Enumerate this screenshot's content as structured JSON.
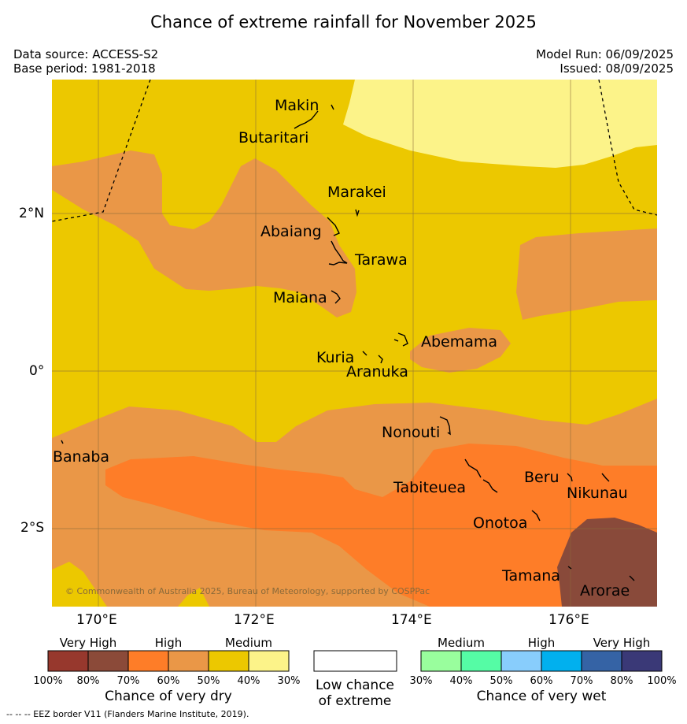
{
  "header": {
    "title": "Chance of extreme rainfall for November 2025",
    "data_source": "Data source: ACCESS-S2",
    "base_period": "Base period: 1981-2018",
    "model_run": "Model Run: 06/09/2025",
    "issued": "Issued: 08/09/2025"
  },
  "map": {
    "lat_labels": [
      "2°N",
      "0°",
      "2°S"
    ],
    "lon_labels": [
      "170°E",
      "172°E",
      "174°E",
      "176°E"
    ],
    "places": [
      "Makin",
      "Butaritari",
      "Marakei",
      "Abaiang",
      "Tarawa",
      "Maiana",
      "Abemama",
      "Kuria",
      "Aranuka",
      "Nonouti",
      "Banaba",
      "Tabiteuea",
      "Beru",
      "Nikunau",
      "Onotoa",
      "Tamana",
      "Arorae"
    ],
    "copyright": "© Commonwealth of Australia 2025, Bureau of Meteorology, supported by COSPPac",
    "colors": {
      "very_dry_90": "#8c3f33",
      "very_dry_80": "#894a3a",
      "high_dry_70": "#fe7d28",
      "high_dry_60": "#ea9747",
      "medium_dry_50": "#ecc800",
      "medium_dry_40": "#fcf389",
      "gridline": "#8a6a3a",
      "eez": "#000000"
    }
  },
  "legend": {
    "dry": {
      "categories": [
        "Very High",
        "High",
        "Medium"
      ],
      "ticks": [
        "100%",
        "80%",
        "70%",
        "60%",
        "50%",
        "40%",
        "30%"
      ],
      "caption": "Chance of very dry",
      "colors": [
        "#97382d",
        "#8b4a39",
        "#fe7d28",
        "#ea9747",
        "#ecc800",
        "#fcf389"
      ]
    },
    "low": {
      "caption_line1": "Low chance",
      "caption_line2": "of extreme",
      "color": "#ffffff"
    },
    "wet": {
      "categories": [
        "Medium",
        "High",
        "Very High"
      ],
      "ticks": [
        "30%",
        "40%",
        "50%",
        "60%",
        "70%",
        "80%",
        "100%"
      ],
      "caption": "Chance of very wet",
      "colors": [
        "#99fe9d",
        "#55fca5",
        "#88cdfc",
        "#01b0ee",
        "#3563a5",
        "#3a3977"
      ]
    }
  },
  "footer": "--  --  -- EEZ border V11 (Flanders Marine Institute, 2019)."
}
